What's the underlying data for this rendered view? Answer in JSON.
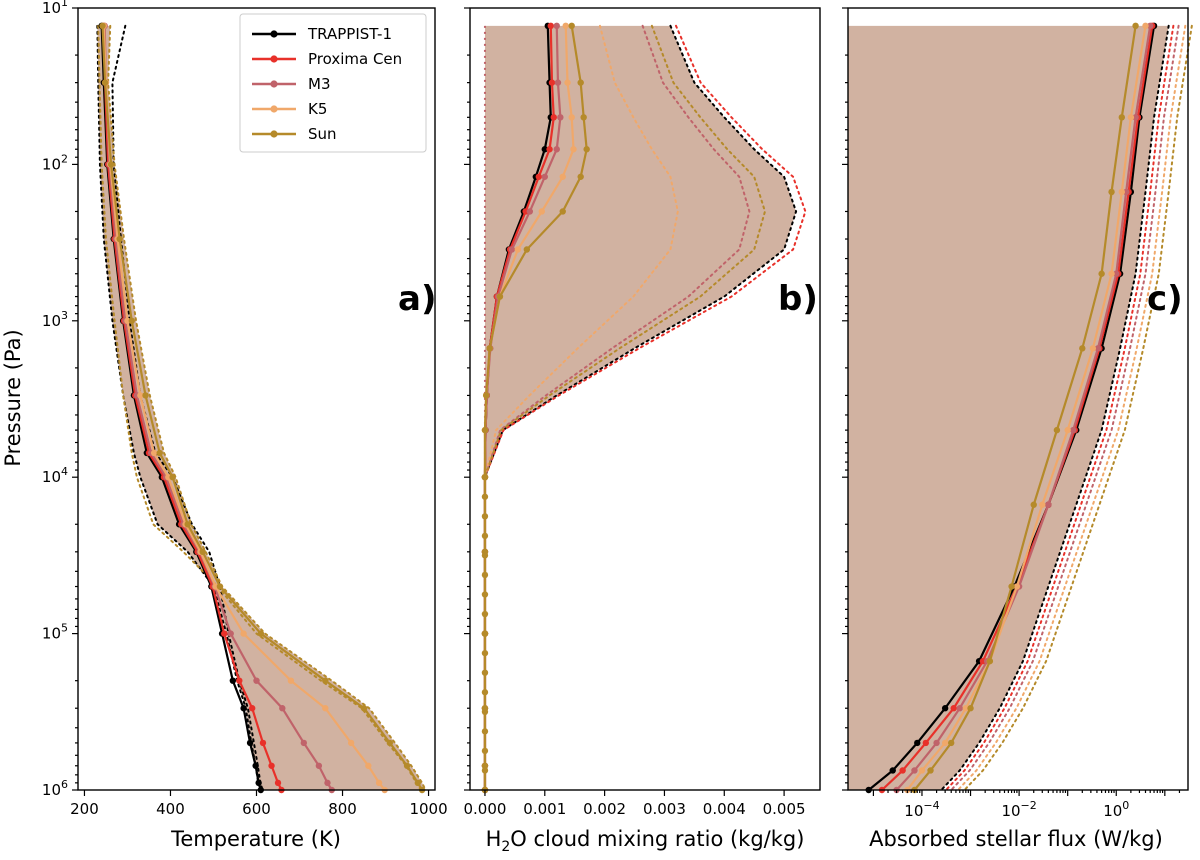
{
  "colors": {
    "TRAPPIST-1": "#000000",
    "Proxima Cen": "#e8312a",
    "M3": "#c0636a",
    "K5": "#f0a86a",
    "Sun": "#b58a2a",
    "fill": "#c9a491"
  },
  "legend": [
    "TRAPPIST-1",
    "Proxima Cen",
    "M3",
    "K5",
    "Sun"
  ],
  "y_axis": {
    "label": "Pressure (Pa)",
    "tick_base": "10",
    "tick_exponents": [
      "1",
      "2",
      "3",
      "4",
      "5",
      "6"
    ]
  },
  "panels": {
    "a": {
      "letter": "a)",
      "xlabel": "Temperature (K)",
      "xticks": [
        "200",
        "400",
        "600",
        "800",
        "1000"
      ]
    },
    "b": {
      "letter": "b)",
      "xlabel_pre": "H",
      "xlabel_sub": "2",
      "xlabel_post": "O cloud mixing ratio (kg/kg)",
      "xticks": [
        "0.000",
        "0.001",
        "0.002",
        "0.003",
        "0.004",
        "0.005"
      ]
    },
    "c": {
      "letter": "c)",
      "xlabel": "Absorbed stellar flux (W/kg)",
      "tick_base": "10",
      "xtick_exponents": [
        "−4",
        "−2",
        "0"
      ]
    }
  },
  "chart_data": [
    {
      "type": "line",
      "panel": "a",
      "xlabel": "Temperature (K)",
      "ylabel": "Pressure (Pa)",
      "xlim": [
        185,
        1015
      ],
      "ylim": [
        1000000,
        10
      ],
      "yscale": "log",
      "series": [
        {
          "name": "TRAPPIST-1",
          "T": [
            240,
            245,
            253,
            268,
            290,
            315,
            345,
            380,
            420,
            460,
            495,
            520,
            545,
            570,
            585,
            598,
            605,
            610
          ],
          "p": [
            13,
            30,
            100,
            300,
            1000,
            3000,
            7000,
            10000,
            20000,
            30000,
            50000,
            100000,
            200000,
            300000,
            500000,
            700000,
            900000,
            1000000
          ],
          "band_min": [
            230,
            232,
            236,
            245,
            265,
            290,
            315,
            330,
            370,
            440,
            500,
            530,
            555,
            575,
            588,
            598,
            604,
            610
          ],
          "band_max": [
            295,
            265,
            268,
            285,
            305,
            330,
            365,
            405,
            450,
            490,
            515,
            535,
            560,
            580,
            594,
            603,
            609,
            614
          ]
        },
        {
          "name": "Proxima Cen",
          "T": [
            245,
            248,
            255,
            270,
            292,
            318,
            350,
            385,
            425,
            463,
            498,
            525,
            560,
            590,
            615,
            635,
            650,
            658
          ],
          "p": [
            13,
            30,
            100,
            300,
            1000,
            3000,
            7000,
            10000,
            20000,
            30000,
            50000,
            100000,
            200000,
            300000,
            500000,
            700000,
            900000,
            1000000
          ]
        },
        {
          "name": "M3",
          "T": [
            247,
            250,
            258,
            273,
            295,
            322,
            355,
            390,
            430,
            468,
            503,
            540,
            600,
            660,
            710,
            745,
            765,
            775
          ],
          "p": [
            13,
            30,
            100,
            300,
            1000,
            3000,
            7000,
            10000,
            20000,
            30000,
            50000,
            100000,
            200000,
            300000,
            500000,
            700000,
            900000,
            1000000
          ]
        },
        {
          "name": "K5",
          "T": [
            245,
            250,
            260,
            277,
            300,
            330,
            362,
            395,
            435,
            470,
            505,
            570,
            680,
            760,
            820,
            860,
            885,
            898
          ],
          "p": [
            13,
            30,
            100,
            300,
            1000,
            3000,
            7000,
            10000,
            20000,
            30000,
            50000,
            100000,
            200000,
            300000,
            500000,
            700000,
            900000,
            1000000
          ]
        },
        {
          "name": "Sun",
          "T": [
            242,
            248,
            262,
            282,
            310,
            342,
            375,
            405,
            440,
            475,
            515,
            610,
            760,
            850,
            910,
            950,
            975,
            985
          ],
          "p": [
            13,
            30,
            100,
            300,
            1000,
            3000,
            7000,
            10000,
            20000,
            30000,
            50000,
            100000,
            200000,
            300000,
            500000,
            700000,
            900000,
            1000000
          ],
          "band_min": [
            232,
            235,
            240,
            250,
            270,
            290,
            310,
            322,
            360,
            430,
            510,
            600,
            750,
            845,
            905,
            948,
            972,
            982
          ],
          "band_max": [
            260,
            255,
            270,
            292,
            320,
            352,
            385,
            412,
            448,
            482,
            520,
            620,
            775,
            862,
            922,
            960,
            985,
            993
          ]
        }
      ]
    },
    {
      "type": "line",
      "panel": "b",
      "xlabel": "H2O cloud mixing ratio (kg/kg)",
      "ylabel": "Pressure (Pa)",
      "xlim": [
        -0.00025,
        0.0056
      ],
      "ylim": [
        1000000,
        10
      ],
      "yscale": "log",
      "series": [
        {
          "name": "TRAPPIST-1",
          "q": [
            0.00105,
            0.00108,
            0.0011,
            0.001,
            0.00085,
            0.00065,
            0.0004,
            0.0002,
            8e-05,
            3e-05,
            1e-05,
            0.0,
            0.0,
            0.0,
            0.0,
            0.0,
            0.0
          ],
          "p": [
            13,
            30,
            50,
            80,
            120,
            200,
            350,
            700,
            1500,
            3000,
            5000,
            10000,
            30000,
            100000,
            300000,
            700000,
            1000000
          ],
          "band_min": [
            0.0,
            0.0,
            0.0,
            0.0,
            0.0,
            0.0,
            0.0,
            0.0,
            0.0,
            0.0,
            0.0,
            0.0,
            0.0,
            0.0,
            0.0,
            0.0,
            0.0
          ],
          "band_max": [
            0.0031,
            0.0035,
            0.004,
            0.0045,
            0.005,
            0.0052,
            0.005,
            0.004,
            0.0025,
            0.0012,
            0.0003,
            0.0,
            0.0,
            0.0,
            0.0,
            0.0,
            0.0
          ]
        },
        {
          "name": "Proxima Cen",
          "q": [
            0.0011,
            0.00112,
            0.00115,
            0.00108,
            0.0009,
            0.00068,
            0.00042,
            0.0002,
            8e-05,
            3e-05,
            1e-05,
            0.0,
            0.0,
            0.0,
            0.0,
            0.0,
            0.0
          ],
          "p": [
            13,
            30,
            50,
            80,
            120,
            200,
            350,
            700,
            1500,
            3000,
            5000,
            10000,
            30000,
            100000,
            300000,
            700000,
            1000000
          ]
        },
        {
          "name": "M3",
          "q": [
            0.0012,
            0.00122,
            0.00126,
            0.0012,
            0.001,
            0.00075,
            0.00045,
            0.00022,
            9e-05,
            3e-05,
            1e-05,
            0.0,
            0.0,
            0.0,
            0.0,
            0.0,
            0.0
          ],
          "p": [
            13,
            30,
            50,
            80,
            120,
            200,
            350,
            700,
            1500,
            3000,
            5000,
            10000,
            30000,
            100000,
            300000,
            700000,
            1000000
          ]
        },
        {
          "name": "K5",
          "q": [
            0.00135,
            0.00138,
            0.00145,
            0.00148,
            0.0013,
            0.00095,
            0.00055,
            0.00025,
            8e-05,
            2e-05,
            0.0,
            0.0,
            0.0,
            0.0,
            0.0,
            0.0,
            0.0
          ],
          "p": [
            13,
            30,
            50,
            80,
            120,
            200,
            350,
            700,
            1500,
            3000,
            5000,
            10000,
            30000,
            100000,
            300000,
            700000,
            1000000
          ]
        },
        {
          "name": "Sun",
          "q": [
            0.00145,
            0.0016,
            0.00165,
            0.0017,
            0.0016,
            0.0013,
            0.0007,
            0.00025,
            8e-05,
            2e-05,
            0.0,
            0.0,
            0.0,
            0.0,
            0.0,
            0.0,
            0.0
          ],
          "p": [
            13,
            30,
            50,
            80,
            120,
            200,
            350,
            700,
            1500,
            3000,
            5000,
            10000,
            30000,
            100000,
            300000,
            700000,
            1000000
          ]
        }
      ]
    },
    {
      "type": "line",
      "panel": "c",
      "xlabel": "Absorbed stellar flux (W/kg)",
      "ylabel": "Pressure (Pa)",
      "xlim": [
        3e-06,
        30
      ],
      "ylim": [
        1000000,
        10
      ],
      "yscale": "log",
      "xscale": "log",
      "series": [
        {
          "name": "TRAPPIST-1",
          "F": [
            6.0,
            3.0,
            2.0,
            1.2,
            0.5,
            0.15,
            0.04,
            0.008,
            0.0015,
            0.0003,
            8e-05,
            2.5e-05,
            8e-06
          ],
          "p": [
            13,
            50,
            150,
            500,
            1500,
            5000,
            15000,
            50000,
            150000,
            300000,
            500000,
            750000,
            1000000
          ],
          "band_max": [
            12.0,
            6.0,
            4.0,
            2.5,
            1.2,
            0.5,
            0.15,
            0.04,
            0.012,
            0.004,
            0.0015,
            0.0006,
            0.00025
          ]
        },
        {
          "name": "Proxima Cen",
          "F": [
            5.5,
            2.8,
            1.8,
            1.1,
            0.45,
            0.14,
            0.04,
            0.009,
            0.0018,
            0.00045,
            0.00012,
            4e-05,
            1.5e-05
          ],
          "p": [
            13,
            50,
            150,
            500,
            1500,
            5000,
            15000,
            50000,
            150000,
            300000,
            500000,
            750000,
            1000000
          ]
        },
        {
          "name": "M3",
          "F": [
            5.0,
            2.5,
            1.6,
            1.0,
            0.42,
            0.13,
            0.04,
            0.01,
            0.0022,
            0.0006,
            0.0002,
            7e-05,
            3e-05
          ],
          "p": [
            13,
            50,
            150,
            500,
            1500,
            5000,
            15000,
            50000,
            150000,
            300000,
            500000,
            750000,
            1000000
          ]
        },
        {
          "name": "K5",
          "F": [
            4.0,
            2.0,
            1.3,
            0.8,
            0.33,
            0.1,
            0.03,
            0.009,
            0.0025,
            0.0008,
            0.0003,
            0.0001,
            5e-05
          ],
          "p": [
            13,
            50,
            150,
            500,
            1500,
            5000,
            15000,
            50000,
            150000,
            300000,
            500000,
            750000,
            1000000
          ]
        },
        {
          "name": "Sun",
          "F": [
            2.5,
            1.3,
            0.8,
            0.5,
            0.2,
            0.06,
            0.02,
            0.007,
            0.0025,
            0.001,
            0.0004,
            0.00015,
            7e-05
          ],
          "p": [
            13,
            50,
            150,
            500,
            1500,
            5000,
            15000,
            50000,
            150000,
            300000,
            500000,
            750000,
            1000000
          ]
        }
      ]
    }
  ]
}
